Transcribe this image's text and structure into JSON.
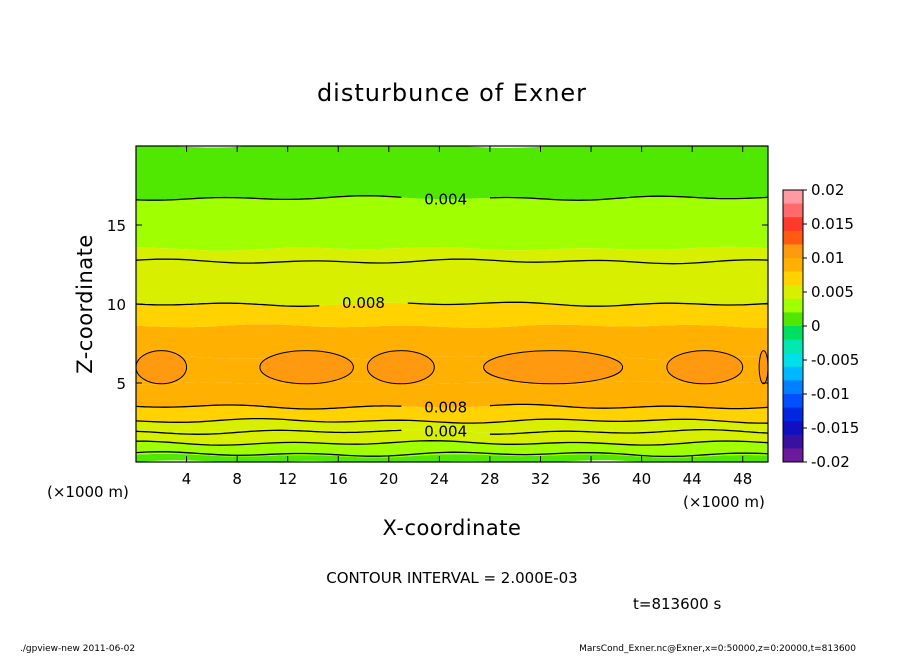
{
  "chart_data": {
    "type": "heatmap",
    "title": "disturbunce of Exner",
    "xlabel": "X-coordinate",
    "ylabel": "Z-coordinate",
    "x_unit": "(×1000 m)",
    "y_unit": "(×1000 m)",
    "xlim": [
      0,
      50
    ],
    "ylim": [
      0,
      20
    ],
    "x_ticks": [
      4,
      8,
      12,
      16,
      20,
      24,
      28,
      32,
      36,
      40,
      44,
      48
    ],
    "y_ticks": [
      5,
      10,
      15
    ],
    "colorbar": {
      "ticks": [
        "0.02",
        "0.015",
        "0.01",
        "0.005",
        "0",
        "-0.005",
        "-0.01",
        "-0.015",
        "-0.02"
      ],
      "levels": [
        {
          "lo": 0.018,
          "hi": 0.02,
          "color": "#ff9aa2"
        },
        {
          "lo": 0.016,
          "hi": 0.018,
          "color": "#ff6a6a"
        },
        {
          "lo": 0.014,
          "hi": 0.016,
          "color": "#ff3a2a"
        },
        {
          "lo": 0.012,
          "hi": 0.014,
          "color": "#ff5a10"
        },
        {
          "lo": 0.01,
          "hi": 0.012,
          "color": "#ff9a10"
        },
        {
          "lo": 0.008,
          "hi": 0.01,
          "color": "#ffb000"
        },
        {
          "lo": 0.006,
          "hi": 0.008,
          "color": "#ffd200"
        },
        {
          "lo": 0.004,
          "hi": 0.006,
          "color": "#d8f000"
        },
        {
          "lo": 0.002,
          "hi": 0.004,
          "color": "#a0ff00"
        },
        {
          "lo": 0.0,
          "hi": 0.002,
          "color": "#50e800"
        },
        {
          "lo": -0.002,
          "hi": 0.0,
          "color": "#00e060"
        },
        {
          "lo": -0.004,
          "hi": -0.002,
          "color": "#00e8b0"
        },
        {
          "lo": -0.006,
          "hi": -0.004,
          "color": "#00e0e8"
        },
        {
          "lo": -0.008,
          "hi": -0.006,
          "color": "#00b8ff"
        },
        {
          "lo": -0.01,
          "hi": -0.008,
          "color": "#0080ff"
        },
        {
          "lo": -0.012,
          "hi": -0.01,
          "color": "#0050ff"
        },
        {
          "lo": -0.014,
          "hi": -0.012,
          "color": "#0028e0"
        },
        {
          "lo": -0.016,
          "hi": -0.014,
          "color": "#1010c0"
        },
        {
          "lo": -0.018,
          "hi": -0.016,
          "color": "#3a10a0"
        },
        {
          "lo": -0.02,
          "hi": -0.018,
          "color": "#6a1a9a"
        }
      ]
    },
    "field_bands": [
      {
        "z0": 0.0,
        "z1": 0.4,
        "value": 0.001
      },
      {
        "z0": 0.4,
        "z1": 1.2,
        "value": 0.003
      },
      {
        "z0": 1.2,
        "z1": 2.0,
        "value": 0.004
      },
      {
        "z0": 2.0,
        "z1": 2.6,
        "value": 0.005
      },
      {
        "z0": 2.6,
        "z1": 3.5,
        "value": 0.007
      },
      {
        "z0": 3.5,
        "z1": 5.0,
        "value": 0.0085
      },
      {
        "z0": 5.0,
        "z1": 6.6,
        "value": 0.0095
      },
      {
        "z0": 6.6,
        "z1": 8.6,
        "value": 0.0085
      },
      {
        "z0": 8.6,
        "z1": 10.0,
        "value": 0.0075
      },
      {
        "z0": 10.0,
        "z1": 12.7,
        "value": 0.0055
      },
      {
        "z0": 12.7,
        "z1": 13.5,
        "value": 0.0045
      },
      {
        "z0": 13.5,
        "z1": 16.7,
        "value": 0.0035
      },
      {
        "z0": 16.7,
        "z1": 20.0,
        "value": 0.0015
      }
    ],
    "contour_lines": [
      {
        "z": 16.7,
        "label": "0.004"
      },
      {
        "z": 12.7,
        "label": ""
      },
      {
        "z": 10.0,
        "label": "0.008"
      },
      {
        "z": 3.5,
        "label": "0.008"
      },
      {
        "z": 2.6,
        "label": ""
      },
      {
        "z": 1.9,
        "label": "0.004"
      },
      {
        "z": 1.2,
        "label": ""
      },
      {
        "z": 0.5,
        "label": ""
      }
    ],
    "high_cells": [
      {
        "x0": 0.0,
        "x1": 4.0,
        "z": 6.0,
        "value": 0.0105
      },
      {
        "x0": 9.8,
        "x1": 17.2,
        "z": 6.0,
        "value": 0.0105
      },
      {
        "x0": 18.3,
        "x1": 23.6,
        "z": 6.0,
        "value": 0.0105
      },
      {
        "x0": 27.5,
        "x1": 38.5,
        "z": 6.0,
        "value": 0.0105
      },
      {
        "x0": 42.0,
        "x1": 48.0,
        "z": 6.0,
        "value": 0.0105
      },
      {
        "x0": 49.3,
        "x1": 50.0,
        "z": 6.0,
        "value": 0.0105
      }
    ],
    "contour_interval": "CONTOUR INTERVAL = 2.000E-03",
    "time": "t=813600 s",
    "grid": false
  },
  "footer": {
    "left": "./gpview-new   2011-06-02",
    "right": "MarsCond_Exner.nc@Exner,x=0:50000,z=0:20000,t=813600"
  }
}
